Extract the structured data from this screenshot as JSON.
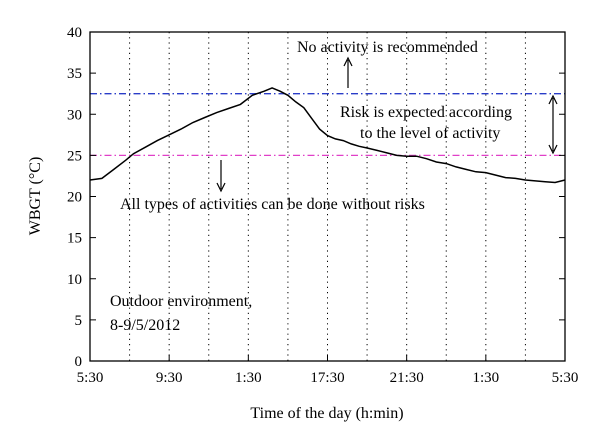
{
  "chart_data": {
    "type": "line",
    "xlabel": "Time of the day (h:min)",
    "ylabel": "WBGT (°C)",
    "ylim": [
      0,
      40
    ],
    "yticks": [
      0,
      5,
      10,
      15,
      20,
      25,
      30,
      35,
      40
    ],
    "xlim": [
      0,
      24
    ],
    "xtick_positions": [
      0,
      4,
      8,
      12,
      16,
      20,
      24
    ],
    "xtick_labels": [
      "5:30",
      "9:30",
      "1:30",
      "17:30",
      "21:30",
      "1:30",
      "5:30"
    ],
    "minor_vgrid_positions": [
      2,
      6,
      10,
      14,
      18,
      22
    ],
    "grid": "vertical dotted",
    "legend": "none",
    "series": [
      {
        "color": "#000000",
        "x": [
          0,
          0.6,
          1.2,
          1.8,
          2.2,
          2.8,
          3.4,
          4.0,
          4.6,
          5.2,
          5.8,
          6.4,
          7.0,
          7.6,
          8.2,
          8.8,
          9.2,
          9.6,
          10.0,
          10.4,
          10.8,
          11.2,
          11.6,
          12.0,
          12.4,
          12.8,
          13.2,
          13.6,
          14.0,
          14.5,
          15.0,
          15.5,
          16.0,
          16.5,
          17.0,
          17.5,
          18.0,
          18.5,
          19.0,
          19.5,
          20.0,
          20.5,
          21.0,
          21.5,
          22.0,
          22.5,
          23.0,
          23.5,
          24.0
        ],
        "values": [
          22.0,
          22.2,
          23.3,
          24.4,
          25.2,
          26.0,
          26.8,
          27.5,
          28.2,
          29.0,
          29.6,
          30.2,
          30.7,
          31.2,
          32.3,
          32.8,
          33.2,
          32.8,
          32.3,
          31.5,
          30.8,
          29.5,
          28.2,
          27.4,
          27.0,
          26.8,
          26.4,
          26.1,
          25.9,
          25.6,
          25.3,
          25.0,
          24.9,
          24.9,
          24.6,
          24.2,
          24.0,
          23.6,
          23.3,
          23.0,
          22.9,
          22.6,
          22.3,
          22.2,
          22.0,
          21.9,
          21.8,
          21.7,
          22.0
        ]
      }
    ],
    "reference_lines": [
      {
        "y": 32.5,
        "color": "#2a3cc8",
        "style": "dash-dot"
      },
      {
        "y": 25,
        "color": "#e040c8",
        "style": "dash-dot"
      }
    ],
    "annotations": {
      "no_activity": "No activity is recommended",
      "risk_line1": "Risk is expected according",
      "risk_line2": "to the level of activity",
      "all_types": "All types of activities can be done without risks",
      "outdoor_line1": "Outdoor environment,",
      "outdoor_line2": "8-9/5/2012"
    }
  }
}
